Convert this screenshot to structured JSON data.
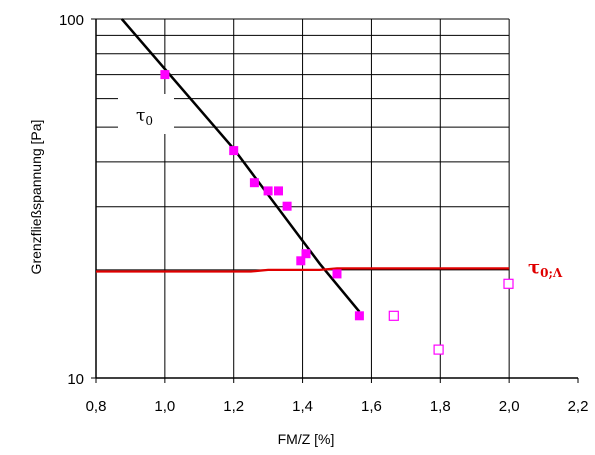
{
  "chart_data": {
    "type": "scatter",
    "title": "",
    "xlabel": "FM/Z  [%]",
    "ylabel": "Grenzfließspannung  [Pa]",
    "x_range": [
      0.8,
      2.2
    ],
    "y_range": [
      10,
      100
    ],
    "y_scale": "log",
    "x_ticks": [
      0.8,
      1.0,
      1.2,
      1.4,
      1.6,
      1.8,
      2.0,
      2.2
    ],
    "x_tick_labels": [
      "0,8",
      "1,0",
      "1,2",
      "1,4",
      "1,6",
      "1,8",
      "2,0",
      "2,2"
    ],
    "y_tick_labels": [
      "10",
      "100"
    ],
    "grid": true,
    "grid_x_range": [
      0.8,
      2.0
    ],
    "series": [
      {
        "marker": "filled-square",
        "color": "#ff00ff",
        "points": [
          [
            1.0,
            70
          ],
          [
            1.2,
            43
          ],
          [
            1.26,
            35
          ],
          [
            1.3,
            33.2
          ],
          [
            1.33,
            33.2
          ],
          [
            1.355,
            30.1
          ],
          [
            1.395,
            21.2
          ],
          [
            1.41,
            22.2
          ],
          [
            1.5,
            19.5
          ],
          [
            1.565,
            14.9
          ]
        ]
      },
      {
        "marker": "open-square",
        "color": "#ff00ff",
        "points": [
          [
            1.665,
            14.9
          ],
          [
            1.795,
            12.0
          ],
          [
            1.998,
            18.3
          ]
        ]
      },
      {
        "kind": "fit-line",
        "color": "#000000",
        "points": [
          [
            0.875,
            100
          ],
          [
            1.2,
            43.5
          ],
          [
            1.45,
            20.8
          ],
          [
            1.565,
            15.3
          ]
        ]
      },
      {
        "kind": "line",
        "color": "#e00000",
        "points": [
          [
            0.8,
            19.8
          ],
          [
            1.25,
            19.8
          ],
          [
            1.3,
            20.0
          ],
          [
            1.45,
            20.0
          ],
          [
            1.5,
            20.2
          ],
          [
            2.0,
            20.2
          ]
        ]
      }
    ],
    "annotations": [
      {
        "label": "τ",
        "subscript": "0",
        "color": "#000000"
      },
      {
        "label": "τ",
        "subscript": "0;Λ",
        "color": "#e00000"
      }
    ]
  }
}
